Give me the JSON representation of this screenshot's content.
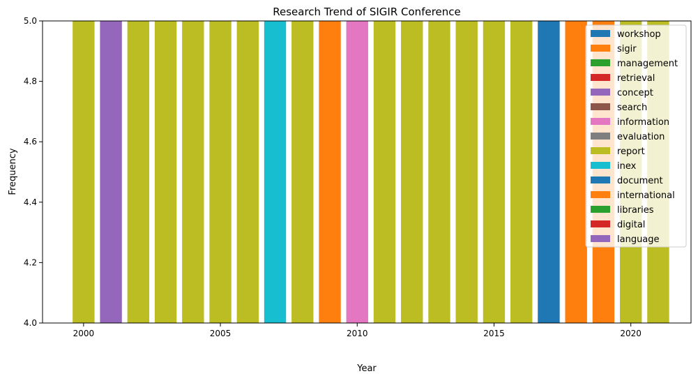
{
  "chart_data": {
    "type": "bar",
    "title": "Research Trend of SIGIR Conference",
    "xlabel": "Year",
    "ylabel": "Frequency",
    "xlim": [
      1998.5,
      2022.2
    ],
    "ylim": [
      4.0,
      5.0
    ],
    "x_ticks": [
      2000,
      2005,
      2010,
      2015,
      2020
    ],
    "y_ticks": [
      4.0,
      4.2,
      4.4,
      4.6,
      4.8,
      5.0
    ],
    "y_tick_labels": [
      "4.0",
      "4.2",
      "4.4",
      "4.6",
      "4.8",
      "5.0"
    ],
    "grid": false,
    "legend_position": "top-right",
    "legend": [
      {
        "label": "workshop",
        "color": "#1f77b4"
      },
      {
        "label": "sigir",
        "color": "#ff7f0e"
      },
      {
        "label": "management",
        "color": "#2ca02c"
      },
      {
        "label": "retrieval",
        "color": "#d62728"
      },
      {
        "label": "concept",
        "color": "#9467bd"
      },
      {
        "label": "search",
        "color": "#8c564b"
      },
      {
        "label": "information",
        "color": "#e377c2"
      },
      {
        "label": "evaluation",
        "color": "#7f7f7f"
      },
      {
        "label": "report",
        "color": "#bcbd22"
      },
      {
        "label": "inex",
        "color": "#17becf"
      },
      {
        "label": "document",
        "color": "#1f77b4"
      },
      {
        "label": "international",
        "color": "#ff7f0e"
      },
      {
        "label": "libraries",
        "color": "#2ca02c"
      },
      {
        "label": "digital",
        "color": "#d62728"
      },
      {
        "label": "language",
        "color": "#9467bd"
      }
    ],
    "bars": [
      {
        "year": 2000,
        "value": 5,
        "color": "#bcbd22"
      },
      {
        "year": 2001,
        "value": 5,
        "color": "#9467bd"
      },
      {
        "year": 2002,
        "value": 5,
        "color": "#bcbd22"
      },
      {
        "year": 2003,
        "value": 5,
        "color": "#bcbd22"
      },
      {
        "year": 2004,
        "value": 5,
        "color": "#bcbd22"
      },
      {
        "year": 2005,
        "value": 5,
        "color": "#bcbd22"
      },
      {
        "year": 2006,
        "value": 5,
        "color": "#bcbd22"
      },
      {
        "year": 2007,
        "value": 5,
        "color": "#17becf"
      },
      {
        "year": 2008,
        "value": 5,
        "color": "#bcbd22"
      },
      {
        "year": 2009,
        "value": 5,
        "color": "#ff7f0e"
      },
      {
        "year": 2010,
        "value": 5,
        "color": "#e377c2"
      },
      {
        "year": 2011,
        "value": 5,
        "color": "#bcbd22"
      },
      {
        "year": 2012,
        "value": 5,
        "color": "#bcbd22"
      },
      {
        "year": 2013,
        "value": 5,
        "color": "#bcbd22"
      },
      {
        "year": 2014,
        "value": 5,
        "color": "#bcbd22"
      },
      {
        "year": 2015,
        "value": 5,
        "color": "#bcbd22"
      },
      {
        "year": 2016,
        "value": 5,
        "color": "#bcbd22"
      },
      {
        "year": 2017,
        "value": 5,
        "color": "#1f77b4"
      },
      {
        "year": 2018,
        "value": 5,
        "color": "#ff7f0e"
      },
      {
        "year": 2019,
        "value": 5,
        "color": "#ff7f0e"
      },
      {
        "year": 2020,
        "value": 5,
        "color": "#bcbd22"
      },
      {
        "year": 2021,
        "value": 5,
        "color": "#bcbd22"
      }
    ]
  }
}
